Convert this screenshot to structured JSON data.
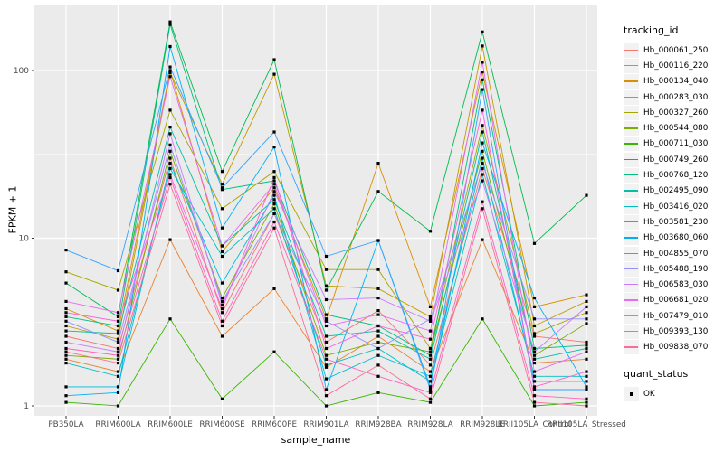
{
  "chart_data": {
    "type": "line",
    "title": "",
    "xlabel": "sample_name",
    "ylabel": "FPKM + 1",
    "y_scale": "log10",
    "y_tick_labels": [
      "1",
      "10",
      "100"
    ],
    "y_tick_values": [
      1,
      10,
      100
    ],
    "y_minor_values": [
      3.162,
      31.623
    ],
    "ylim": [
      0.95,
      244
    ],
    "grid": true,
    "legend_position": "right",
    "panel_bg": "#EBEBEB",
    "grid_color": "#FFFFFF",
    "axis_text_color": "#4D4D4D",
    "tick_mark_color": "#333333",
    "point_color": "#000000",
    "categories": [
      "PB350LA",
      "RRIM600LA",
      "RRIM600LE",
      "RRIM600SE",
      "RRIM600PE",
      "RRIM901LA",
      "RRIM928BA",
      "RRIM928LA",
      "RRIM928LE",
      "RRII105LA_Control",
      "RRII105LA_Stressed"
    ],
    "series": [
      {
        "name": "Hb_000061_250",
        "color": "#F8766D",
        "values": [
          2.6,
          2.2,
          30,
          3.6,
          14,
          2.4,
          3.7,
          1.75,
          26,
          2.6,
          2.4
        ]
      },
      {
        "name": "Hb_000116_220",
        "color": "#EA8331",
        "values": [
          1.9,
          1.6,
          9.8,
          2.6,
          5.0,
          1.7,
          2.6,
          1.6,
          9.8,
          1.8,
          1.9
        ]
      },
      {
        "name": "Hb_000134_040",
        "color": "#D89000",
        "values": [
          3.8,
          2.8,
          100,
          8.3,
          20,
          3.3,
          28,
          3.9,
          98,
          3.9,
          4.6
        ]
      },
      {
        "name": "Hb_000283_030",
        "color": "#C09B00",
        "values": [
          3.0,
          2.5,
          97,
          21,
          95,
          5.2,
          5.0,
          3.4,
          140,
          3.0,
          4.2
        ]
      },
      {
        "name": "Hb_000327_260",
        "color": "#A3A500",
        "values": [
          6.3,
          4.9,
          58,
          15,
          25,
          6.5,
          6.5,
          2.2,
          47,
          2.7,
          3.6
        ]
      },
      {
        "name": "Hb_000544_080",
        "color": "#7CAE00",
        "values": [
          2.0,
          1.9,
          33,
          4.4,
          16,
          2.0,
          2.4,
          2.1,
          33,
          2.0,
          3.1
        ]
      },
      {
        "name": "Hb_000711_030",
        "color": "#39B600",
        "values": [
          1.05,
          1.0,
          3.3,
          1.1,
          2.1,
          1.0,
          1.2,
          1.05,
          3.3,
          1.0,
          1.05
        ]
      },
      {
        "name": "Hb_000749_260",
        "color": "#00BB4E",
        "values": [
          5.4,
          3.4,
          195,
          25,
          116,
          4.9,
          19,
          11,
          170,
          9.3,
          18
        ]
      },
      {
        "name": "Hb_000768_120",
        "color": "#00BF7D",
        "values": [
          3.4,
          3.0,
          188,
          19.5,
          22,
          3.5,
          3.0,
          2.0,
          88,
          2.2,
          2.3
        ]
      },
      {
        "name": "Hb_002495_090",
        "color": "#00C1A3",
        "values": [
          2.8,
          2.7,
          46,
          9.0,
          17,
          2.6,
          2.8,
          1.9,
          43,
          1.9,
          2.2
        ]
      },
      {
        "name": "Hb_003416_020",
        "color": "#00BFC4",
        "values": [
          1.8,
          1.5,
          26,
          7.8,
          15,
          1.75,
          2.2,
          1.4,
          24,
          1.5,
          1.5
        ]
      },
      {
        "name": "Hb_003581_230",
        "color": "#00BBDA",
        "values": [
          1.3,
          1.3,
          28,
          5.4,
          18,
          1.45,
          2.0,
          1.5,
          30,
          1.4,
          1.4
        ]
      },
      {
        "name": "Hb_003680_060",
        "color": "#00B0F6",
        "values": [
          1.15,
          1.2,
          139,
          11.5,
          35,
          1.25,
          9.7,
          1.3,
          37,
          4.4,
          1.3
        ]
      },
      {
        "name": "Hb_004855_070",
        "color": "#35A2FF",
        "values": [
          8.5,
          6.4,
          105,
          20,
          43,
          7.8,
          9.7,
          1.25,
          77,
          1.25,
          1.25
        ]
      },
      {
        "name": "Hb_005488_190",
        "color": "#9590FF",
        "values": [
          3.2,
          2.4,
          36,
          4.2,
          14,
          3.2,
          2.2,
          3.3,
          28,
          3.3,
          3.3
        ]
      },
      {
        "name": "Hb_006583_030",
        "color": "#C77CFF",
        "values": [
          2.4,
          2.1,
          42,
          4.0,
          19,
          4.3,
          4.4,
          3.2,
          22,
          2.1,
          3.9
        ]
      },
      {
        "name": "Hb_006681_020",
        "color": "#E76BF3",
        "values": [
          4.2,
          3.6,
          92,
          9.0,
          21,
          3.0,
          3.5,
          2.8,
          112,
          1.6,
          2.1
        ]
      },
      {
        "name": "Hb_007479_010",
        "color": "#FA62DB",
        "values": [
          3.6,
          3.2,
          24,
          3.8,
          23,
          2.2,
          3.0,
          2.5,
          58,
          1.3,
          1.6
        ]
      },
      {
        "name": "Hb_009393_130",
        "color": "#FF62BC",
        "values": [
          2.2,
          2.0,
          23,
          3.2,
          12.5,
          1.9,
          1.5,
          1.2,
          16.5,
          1.15,
          1.1
        ]
      },
      {
        "name": "Hb_009838_070",
        "color": "#FF6A98",
        "values": [
          2.1,
          1.8,
          21,
          3.0,
          11.5,
          1.15,
          1.75,
          1.1,
          15,
          1.05,
          1.0
        ]
      }
    ],
    "legend": {
      "tracking_title": "tracking_id",
      "quant_title": "quant_status",
      "quant_items": [
        {
          "label": "OK",
          "shape": "filled-square",
          "color": "#000000"
        }
      ]
    }
  }
}
